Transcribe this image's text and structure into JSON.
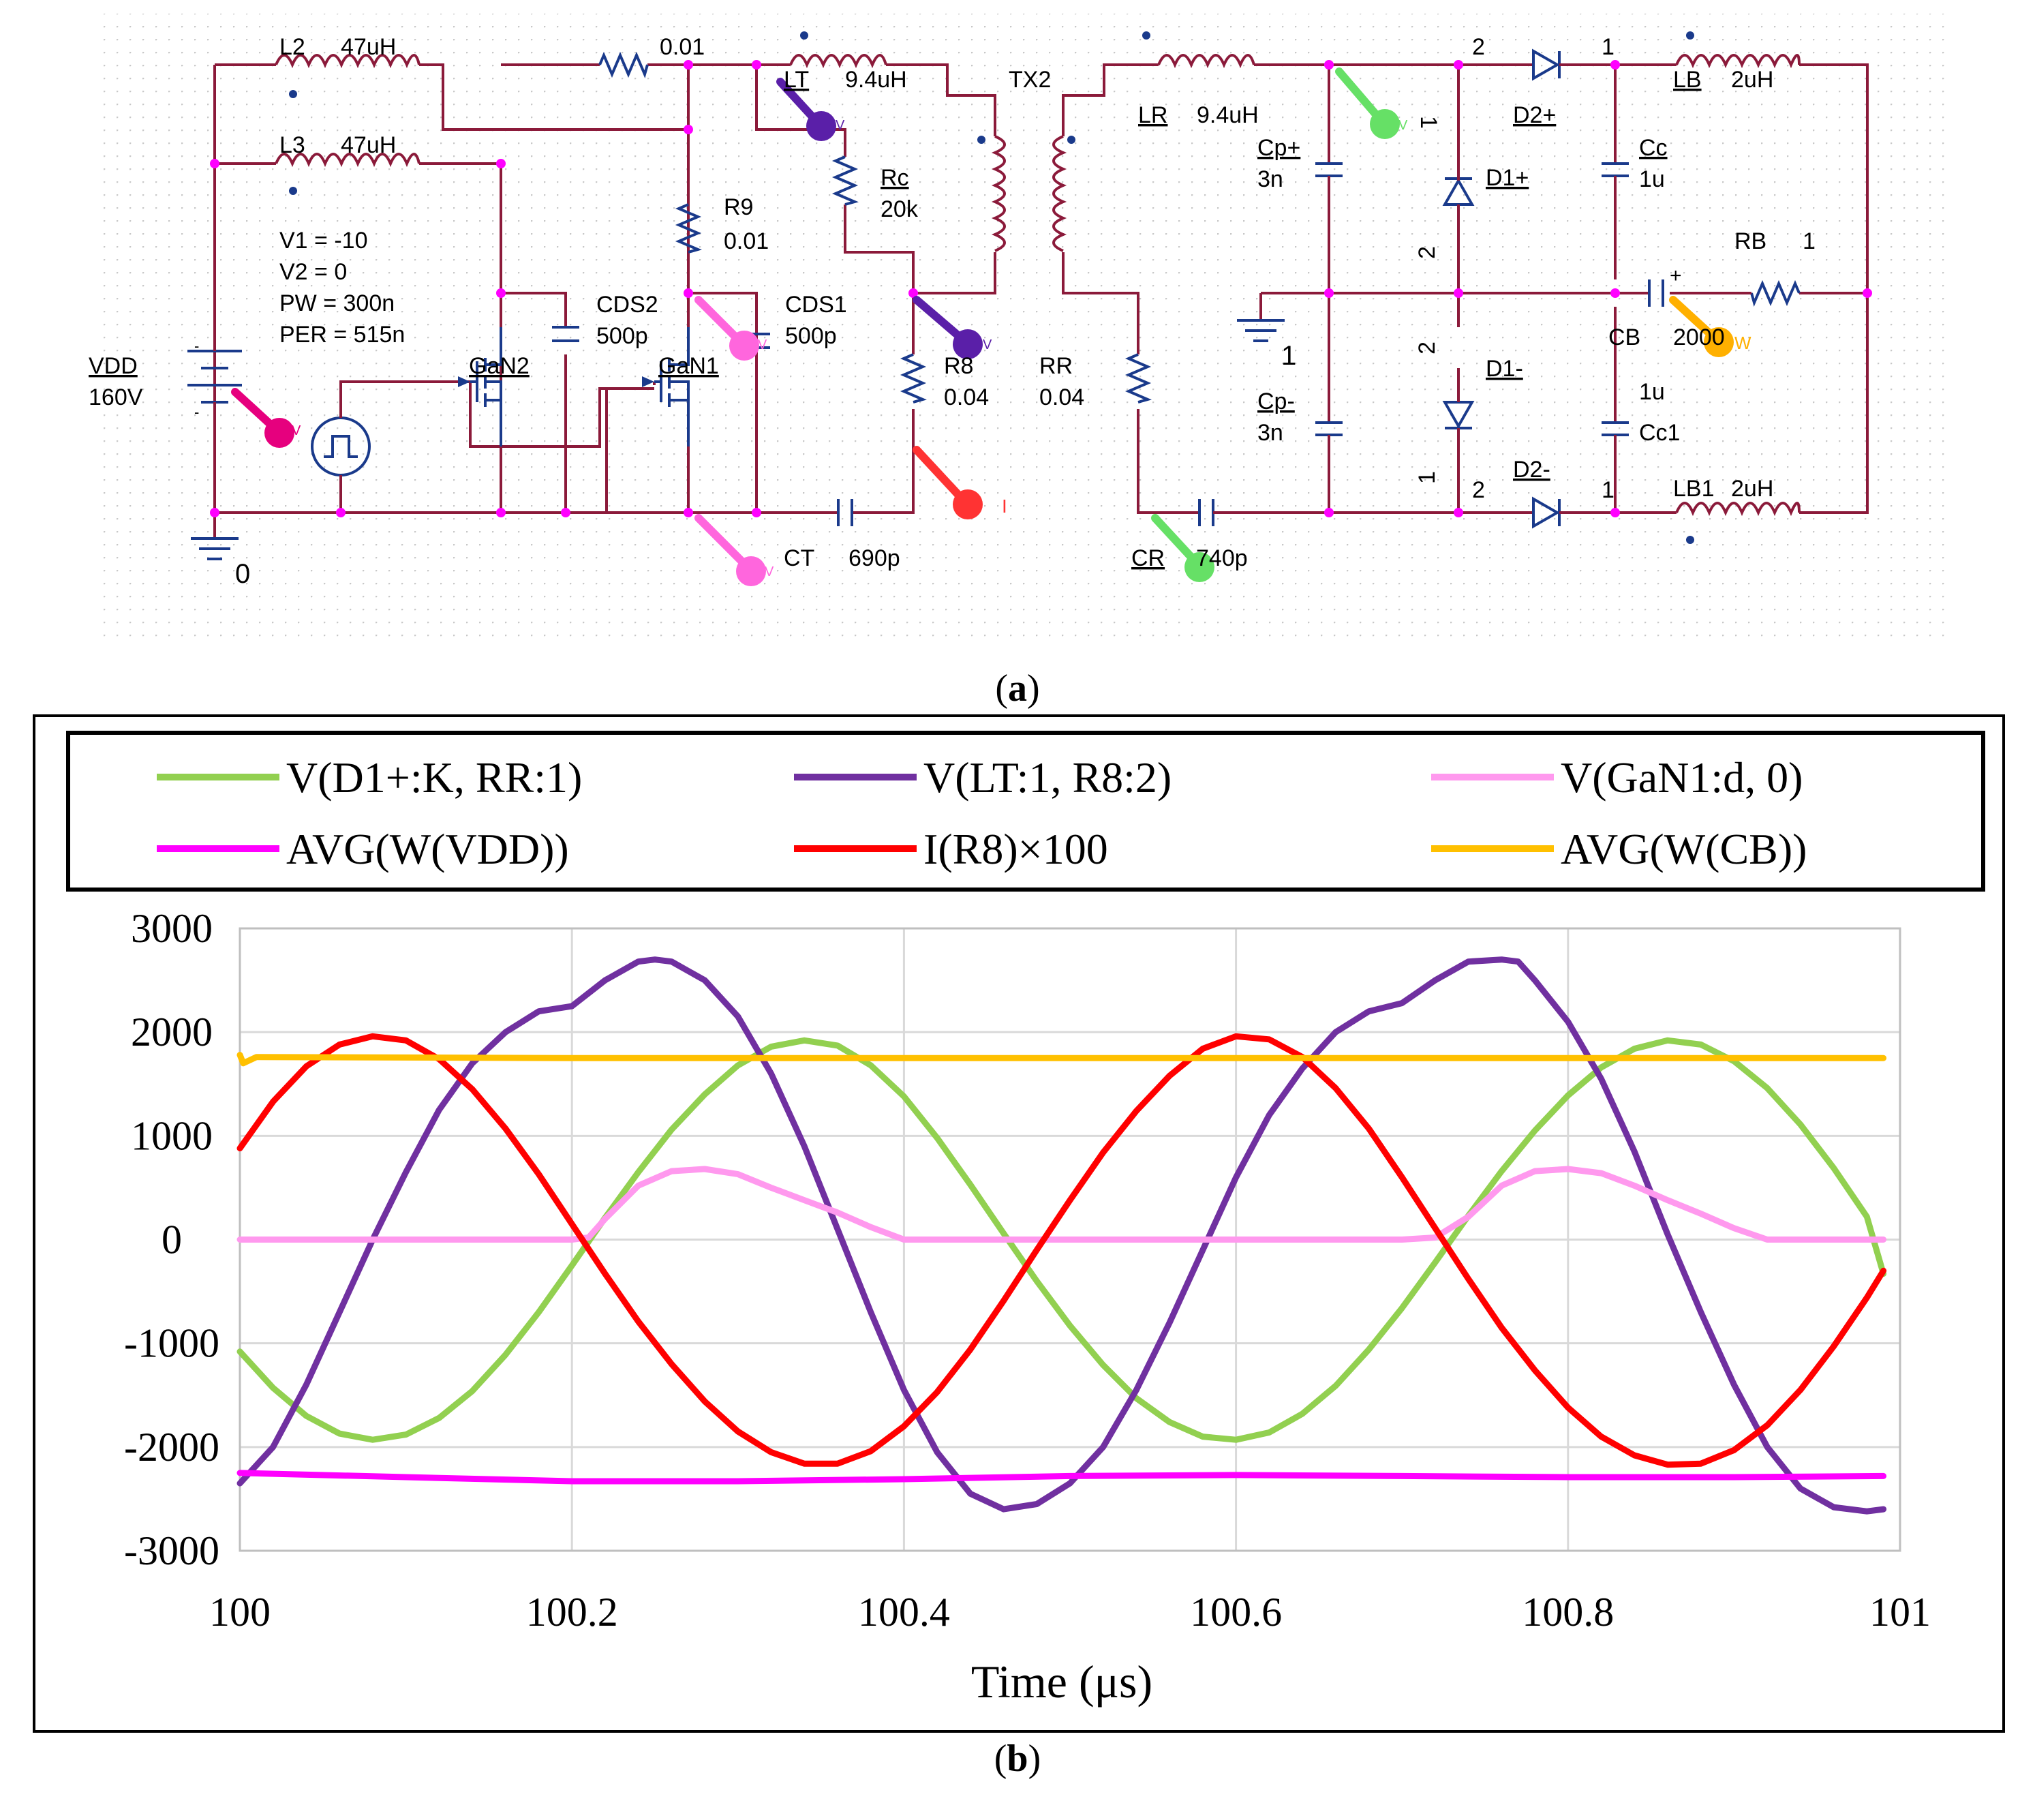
{
  "schematic": {
    "components": {
      "L2": {
        "name": "L2",
        "value": "47uH"
      },
      "L3": {
        "name": "L3",
        "value": "47uH"
      },
      "R_shunt": {
        "value": "0.01"
      },
      "LT": {
        "name": "LT",
        "value": "9.4uH"
      },
      "TX2": {
        "name": "TX2"
      },
      "LR": {
        "name": "LR",
        "value": "9.4uH"
      },
      "Rc": {
        "name": "Rc",
        "value": "20k"
      },
      "R9": {
        "name": "R9",
        "value": "0.01"
      },
      "CDS2": {
        "name": "CDS2",
        "value": "500p"
      },
      "CDS1": {
        "name": "CDS1",
        "value": "500p"
      },
      "GaN2": {
        "name": "GaN2"
      },
      "GaN1": {
        "name": "GaN1"
      },
      "R8": {
        "name": "R8",
        "value": "0.04"
      },
      "RR": {
        "name": "RR",
        "value": "0.04"
      },
      "CT": {
        "name": "CT",
        "value": "690p"
      },
      "CR": {
        "name": "CR",
        "value": "740p"
      },
      "VDD": {
        "name": "VDD",
        "value": "160V"
      },
      "pulse": [
        "V1 = -10",
        "V2 = 0",
        "PW = 300n",
        "PER = 515n"
      ],
      "Cp_plus": {
        "name": "Cp+",
        "value": "3n"
      },
      "Cp_minus": {
        "name": "Cp-",
        "value": "3n"
      },
      "D1_plus": {
        "name": "D1+"
      },
      "D1_minus": {
        "name": "D1-"
      },
      "D2_plus": {
        "name": "D2+"
      },
      "D2_minus": {
        "name": "D2-"
      },
      "Cc": {
        "name": "Cc",
        "value": "1u"
      },
      "Cc1": {
        "name": "Cc1",
        "value": "1u"
      },
      "CB": {
        "name": "CB",
        "value": "2000"
      },
      "RB": {
        "name": "RB",
        "value": "1"
      },
      "LB": {
        "name": "LB",
        "value": "2uH"
      },
      "LB1": {
        "name": "LB1",
        "value": "2uH"
      }
    },
    "pin_labels": {
      "one": "1",
      "two": "2"
    },
    "ground_left": "0",
    "ground_right": "1",
    "probe_marks": {
      "v": "V",
      "i": "I",
      "w": "W"
    },
    "caption_prefix": "(",
    "caption_letter": "a",
    "caption_suffix": ")"
  },
  "chart_data": {
    "type": "line",
    "xlabel": "Time (μs)",
    "ylabel": "",
    "xlim": [
      100,
      101
    ],
    "ylim": [
      -3000,
      3000
    ],
    "x_ticks": [
      "100",
      "100.2",
      "100.4",
      "100.6",
      "100.8",
      "101"
    ],
    "y_ticks": [
      "3000",
      "2000",
      "1000",
      "0",
      "-1000",
      "-2000",
      "-3000"
    ],
    "grid": true,
    "legend_position": "top",
    "series": [
      {
        "name": "V(D1+:K, RR:1)",
        "color": "#92d050",
        "x": [
          100,
          100.02,
          100.04,
          100.06,
          100.08,
          100.1,
          100.12,
          100.14,
          100.16,
          100.18,
          100.2,
          100.22,
          100.24,
          100.26,
          100.28,
          100.3,
          100.32,
          100.34,
          100.36,
          100.38,
          100.4,
          100.42,
          100.44,
          100.46,
          100.48,
          100.5,
          100.52,
          100.54,
          100.56,
          100.58,
          100.6,
          100.62,
          100.64,
          100.66,
          100.68,
          100.7,
          100.72,
          100.74,
          100.76,
          100.78,
          100.8,
          100.82,
          100.84,
          100.86,
          100.88,
          100.9,
          100.92,
          100.94,
          100.96,
          100.98,
          100.99
        ],
        "y": [
          -1080,
          -1430,
          -1700,
          -1870,
          -1930,
          -1880,
          -1720,
          -1460,
          -1110,
          -700,
          -250,
          210,
          650,
          1060,
          1400,
          1680,
          1860,
          1920,
          1870,
          1680,
          1380,
          980,
          530,
          60,
          -400,
          -830,
          -1210,
          -1530,
          -1760,
          -1900,
          -1930,
          -1860,
          -1680,
          -1410,
          -1060,
          -660,
          -220,
          230,
          660,
          1050,
          1390,
          1660,
          1840,
          1920,
          1880,
          1720,
          1460,
          1110,
          690,
          220,
          -330
        ]
      },
      {
        "name": "V(LT:1, R8:2)",
        "color": "#7030a0",
        "x": [
          100,
          100.02,
          100.04,
          100.06,
          100.08,
          100.1,
          100.12,
          100.14,
          100.16,
          100.18,
          100.2,
          100.22,
          100.24,
          100.25,
          100.26,
          100.28,
          100.3,
          100.32,
          100.34,
          100.36,
          100.38,
          100.4,
          100.42,
          100.44,
          100.46,
          100.48,
          100.5,
          100.52,
          100.54,
          100.56,
          100.58,
          100.6,
          100.62,
          100.64,
          100.66,
          100.68,
          100.7,
          100.72,
          100.74,
          100.76,
          100.77,
          100.78,
          100.8,
          100.82,
          100.84,
          100.86,
          100.88,
          100.9,
          100.92,
          100.94,
          100.96,
          100.98,
          100.99
        ],
        "y": [
          -2350,
          -2000,
          -1400,
          -700,
          0,
          650,
          1250,
          1700,
          2000,
          2200,
          2250,
          2500,
          2680,
          2700,
          2680,
          2500,
          2150,
          1600,
          900,
          100,
          -700,
          -1450,
          -2050,
          -2450,
          -2600,
          -2550,
          -2350,
          -2000,
          -1450,
          -800,
          -100,
          600,
          1200,
          1650,
          2000,
          2200,
          2280,
          2500,
          2680,
          2700,
          2680,
          2500,
          2100,
          1550,
          850,
          50,
          -700,
          -1400,
          -2000,
          -2400,
          -2580,
          -2620,
          -2600
        ]
      },
      {
        "name": "V(GaN1:d, 0)",
        "color": "#ff99ee",
        "x": [
          100,
          100.1,
          100.2,
          100.21,
          100.22,
          100.24,
          100.26,
          100.28,
          100.3,
          100.32,
          100.34,
          100.36,
          100.38,
          100.4,
          100.5,
          100.6,
          100.7,
          100.72,
          100.74,
          100.76,
          100.78,
          100.8,
          100.82,
          100.84,
          100.86,
          100.88,
          100.9,
          100.92,
          100.95,
          100.99
        ],
        "y": [
          0,
          0,
          0,
          20,
          200,
          520,
          660,
          680,
          630,
          500,
          380,
          260,
          120,
          0,
          0,
          0,
          0,
          20,
          220,
          520,
          660,
          680,
          640,
          520,
          380,
          250,
          110,
          0,
          0,
          0
        ]
      },
      {
        "name": "AVG(W(VDD))",
        "color": "#ff00ff",
        "x": [
          100,
          100.1,
          100.2,
          100.3,
          100.4,
          100.5,
          100.6,
          100.7,
          100.8,
          100.9,
          100.99
        ],
        "y": [
          -2250,
          -2290,
          -2330,
          -2330,
          -2310,
          -2280,
          -2270,
          -2280,
          -2290,
          -2290,
          -2280
        ]
      },
      {
        "name": "I(R8)×100",
        "color": "#ff0000",
        "x": [
          100,
          100.02,
          100.04,
          100.06,
          100.08,
          100.1,
          100.12,
          100.14,
          100.16,
          100.18,
          100.2,
          100.22,
          100.24,
          100.26,
          100.28,
          100.3,
          100.32,
          100.34,
          100.36,
          100.38,
          100.4,
          100.42,
          100.44,
          100.46,
          100.48,
          100.5,
          100.52,
          100.54,
          100.56,
          100.58,
          100.6,
          100.62,
          100.64,
          100.66,
          100.68,
          100.7,
          100.72,
          100.74,
          100.76,
          100.78,
          100.8,
          100.82,
          100.84,
          100.86,
          100.88,
          100.9,
          100.92,
          100.94,
          100.96,
          100.98,
          100.99
        ],
        "y": [
          880,
          1330,
          1670,
          1880,
          1960,
          1920,
          1740,
          1450,
          1070,
          630,
          150,
          -330,
          -790,
          -1200,
          -1560,
          -1850,
          -2050,
          -2160,
          -2160,
          -2040,
          -1800,
          -1470,
          -1060,
          -590,
          -100,
          380,
          840,
          1240,
          1580,
          1840,
          1960,
          1930,
          1760,
          1460,
          1070,
          600,
          110,
          -380,
          -850,
          -1260,
          -1620,
          -1900,
          -2080,
          -2170,
          -2160,
          -2030,
          -1790,
          -1450,
          -1030,
          -560,
          -300
        ]
      },
      {
        "name": "AVG(W(CB))",
        "color": "#ffc000",
        "x": [
          100,
          100.002,
          100.01,
          100.2,
          100.4,
          100.6,
          100.8,
          100.99
        ],
        "y": [
          1780,
          1700,
          1760,
          1750,
          1750,
          1750,
          1750,
          1750
        ]
      }
    ],
    "caption_prefix": "(",
    "caption_letter": "b",
    "caption_suffix": ")"
  }
}
